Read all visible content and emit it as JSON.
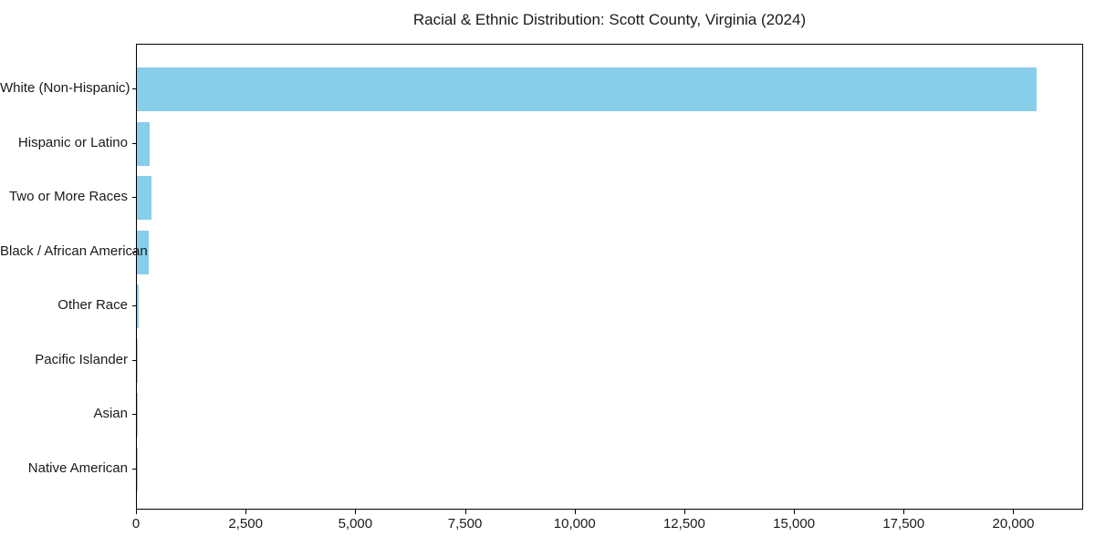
{
  "chart_data": {
    "type": "bar",
    "orientation": "horizontal",
    "title": "Racial & Ethnic Distribution: Scott County, Virginia (2024)",
    "categories": [
      "White (Non-Hispanic)",
      "Hispanic or Latino",
      "Two or More Races",
      "Black / African American",
      "Other Race",
      "Pacific Islander",
      "Asian",
      "Native American"
    ],
    "values": [
      20500,
      300,
      325,
      270,
      40,
      20,
      12,
      8
    ],
    "xlabel": "",
    "ylabel": "",
    "xlim": [
      0,
      21550
    ],
    "xticks": [
      0,
      2500,
      5000,
      7500,
      10000,
      12500,
      15000,
      17500,
      20000
    ],
    "xtick_labels": [
      "0",
      "2,500",
      "5,000",
      "7,500",
      "10,000",
      "12,500",
      "15,000",
      "17,500",
      "20,000"
    ],
    "bar_color": "#87CEEB",
    "axis_color": "#000000",
    "text_color": "#1a1a1a",
    "background_color": "#ffffff",
    "grid": false,
    "legend": null
  }
}
